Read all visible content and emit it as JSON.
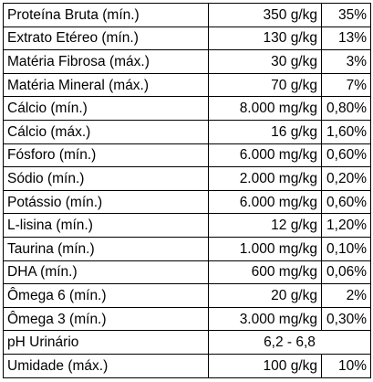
{
  "rows": [
    {
      "name": "Proteína Bruta (mín.)",
      "value": "350 g/kg",
      "percent": "35%"
    },
    {
      "name": "Extrato Etéreo (mín.)",
      "value": "130 g/kg",
      "percent": "13%"
    },
    {
      "name": "Matéria Fibrosa (máx.)",
      "value": "30 g/kg",
      "percent": "3%"
    },
    {
      "name": "Matéria Mineral (máx.)",
      "value": "70 g/kg",
      "percent": "7%"
    },
    {
      "name": "Cálcio (mín.)",
      "value": "8.000 mg/kg",
      "percent": "0,80%"
    },
    {
      "name": "Cálcio (máx.)",
      "value": "16 g/kg",
      "percent": "1,60%"
    },
    {
      "name": "Fósforo (mín.)",
      "value": "6.000 mg/kg",
      "percent": "0,60%"
    },
    {
      "name": "Sódio (mín.)",
      "value": "2.000 mg/kg",
      "percent": "0,20%"
    },
    {
      "name": "Potássio (mín.)",
      "value": "6.000 mg/kg",
      "percent": "0,60%"
    },
    {
      "name": "L-lisina (mín.)",
      "value": "12 g/kg",
      "percent": "1,20%"
    },
    {
      "name": "Taurina (mín.)",
      "value": "1.000 mg/kg",
      "percent": "0,10%"
    },
    {
      "name": "DHA (mín.)",
      "value": "600 mg/kg",
      "percent": "0,06%"
    },
    {
      "name": "Ômega 6 (mín.)",
      "value": "20 g/kg",
      "percent": "2%"
    },
    {
      "name": "Ômega 3 (mín.)",
      "value": "3.000 mg/kg",
      "percent": "0,30%"
    },
    {
      "name": "pH Urinário",
      "value": "6,2 - 6,8",
      "percent": ""
    },
    {
      "name": "Umidade (máx.)",
      "value": "100 g/kg",
      "percent": "10%"
    }
  ]
}
